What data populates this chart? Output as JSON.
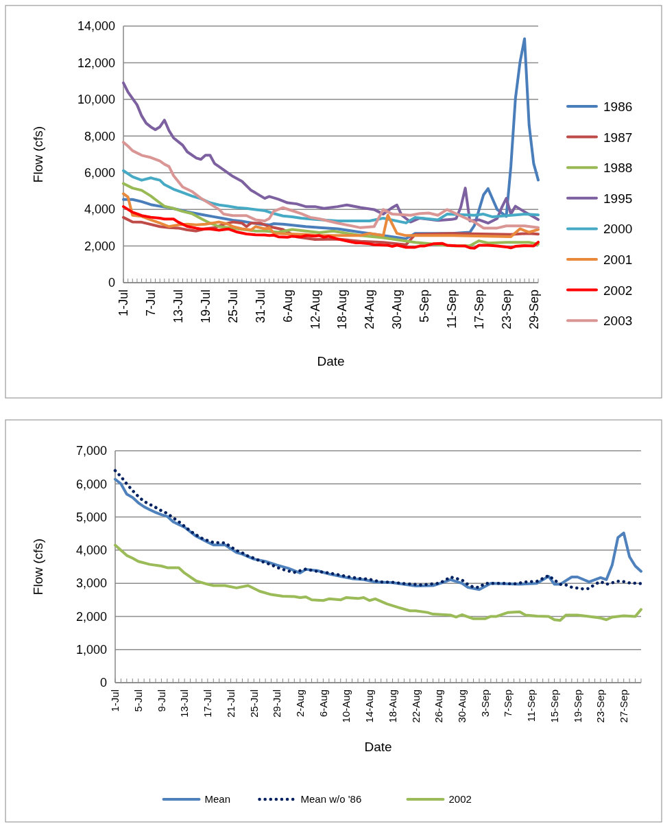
{
  "chart_data": [
    {
      "type": "line",
      "xlabel": "Date",
      "ylabel": "Flow (cfs)",
      "xlim": [
        "--07-01",
        "--09-30"
      ],
      "ylim": [
        0,
        14000
      ],
      "yticks": [
        0,
        {
          "value": 2000,
          "label": "2,000"
        },
        {
          "value": 4000,
          "label": "4,000"
        },
        {
          "value": 6000,
          "label": "6,000"
        },
        {
          "value": 8000,
          "label": "8,000"
        },
        {
          "value": 10000,
          "label": "10,000"
        },
        {
          "value": 12000,
          "label": "12,000"
        },
        {
          "value": 14000,
          "label": "14,000"
        }
      ],
      "xticks": [
        {
          "value": "--07-01",
          "label": "1-Jul"
        },
        {
          "value": "--07-07",
          "label": "7-Jul"
        },
        {
          "value": "--07-13",
          "label": "13-Jul"
        },
        {
          "value": "--07-19",
          "label": "19-Jul"
        },
        {
          "value": "--07-25",
          "label": "25-Jul"
        },
        {
          "value": "--07-31",
          "label": "31-Jul"
        },
        {
          "value": "--08-06",
          "label": "6-Aug"
        },
        {
          "value": "--08-12",
          "label": "12-Aug"
        },
        {
          "value": "--08-18",
          "label": "18-Aug"
        },
        {
          "value": "--08-24",
          "label": "24-Aug"
        },
        {
          "value": "--08-30",
          "label": "30-Aug"
        },
        {
          "value": "--09-05",
          "label": "5-Sep"
        },
        {
          "value": "--09-11",
          "label": "11-Sep"
        },
        {
          "value": "--09-17",
          "label": "17-Sep"
        },
        {
          "value": "--09-23",
          "label": "23-Sep"
        },
        {
          "value": "--09-29",
          "label": "29-Sep"
        }
      ],
      "grid": "y",
      "legend": "right",
      "line_style": "solid",
      "series": [
        {
          "name": "1986",
          "color": "#4a7ebb",
          "x": [
            "--07-01",
            "--07-03",
            "--07-05",
            "--07-07",
            "--07-09",
            "--07-11",
            "--07-13",
            "--07-15",
            "--07-17",
            "--07-19",
            "--07-21",
            "--07-23",
            "--07-25",
            "--07-27",
            "--07-29",
            "--07-31",
            "--08-02",
            "--08-03",
            "--08-05",
            "--08-10",
            "--08-13",
            "--08-17",
            "--08-22",
            "--08-27",
            "--09-01",
            "--09-03",
            "--09-11",
            "--09-15",
            "--09-16",
            "--09-18",
            "--09-19",
            "--09-21",
            "--09-23",
            "--09-24",
            "--09-25",
            "--09-26",
            "--09-27",
            "--09-28",
            "--09-29",
            "--09-30"
          ],
          "values": [
            4540,
            4540,
            4420,
            4260,
            4170,
            4090,
            3990,
            3870,
            3770,
            3680,
            3590,
            3500,
            3410,
            3350,
            3270,
            3190,
            3150,
            3220,
            3190,
            3060,
            3000,
            2940,
            2750,
            2570,
            2400,
            2690,
            2690,
            2750,
            3120,
            4790,
            5130,
            3990,
            3620,
            6340,
            10040,
            12020,
            13310,
            8600,
            6500,
            5600
          ]
        },
        {
          "name": "1987",
          "color": "#be4b48",
          "x": [
            "--07-01",
            "--07-03",
            "--07-05",
            "--07-09",
            "--07-11",
            "--07-13",
            "--07-15",
            "--07-17",
            "--07-19",
            "--07-21",
            "--07-23",
            "--07-25",
            "--07-27",
            "--07-28",
            "--07-29",
            "--07-31",
            "--08-02",
            "--08-05",
            "--08-08",
            "--08-12",
            "--08-17",
            "--08-22",
            "--08-27",
            "--09-01",
            "--09-03",
            "--09-11",
            "--09-24",
            "--09-28",
            "--09-30"
          ],
          "values": [
            3560,
            3310,
            3300,
            3060,
            3000,
            2980,
            2880,
            2820,
            2940,
            3000,
            3190,
            3310,
            3250,
            3060,
            3250,
            3250,
            3060,
            2900,
            2500,
            2360,
            2380,
            2260,
            2200,
            2070,
            2630,
            2690,
            2630,
            2690,
            2650
          ]
        },
        {
          "name": "1988",
          "color": "#98b954",
          "x": [
            "--07-01",
            "--07-03",
            "--07-05",
            "--07-07",
            "--07-08",
            "--07-10",
            "--07-12",
            "--07-14",
            "--07-16",
            "--07-18",
            "--07-20",
            "--07-22",
            "--07-24",
            "--07-26",
            "--07-28",
            "--07-30",
            "--08-01",
            "--08-04",
            "--08-07",
            "--08-10",
            "--08-13",
            "--08-16",
            "--08-22",
            "--08-27",
            "--09-03",
            "--09-11",
            "--09-15",
            "--09-17",
            "--09-19",
            "--09-23",
            "--09-28",
            "--09-30"
          ],
          "values": [
            5410,
            5160,
            5040,
            4730,
            4540,
            4170,
            4050,
            3890,
            3770,
            3500,
            3250,
            3060,
            3000,
            2940,
            2880,
            2820,
            2820,
            2750,
            2900,
            2820,
            2730,
            2820,
            2570,
            2450,
            2200,
            2010,
            2010,
            2280,
            2160,
            2200,
            2200,
            2100
          ]
        },
        {
          "name": "1995",
          "color": "#7d60a0",
          "x": [
            "--07-01",
            "--07-02",
            "--07-04",
            "--07-05",
            "--07-06",
            "--07-07",
            "--07-08",
            "--07-09",
            "--07-10",
            "--07-11",
            "--07-12",
            "--07-14",
            "--07-15",
            "--07-17",
            "--07-18",
            "--07-19",
            "--07-20",
            "--07-21",
            "--07-23",
            "--07-25",
            "--07-27",
            "--07-29",
            "--07-30",
            "--08-01",
            "--08-02",
            "--08-04",
            "--08-06",
            "--08-08",
            "--08-10",
            "--08-12",
            "--08-14",
            "--08-17",
            "--08-19",
            "--08-22",
            "--08-25",
            "--08-27",
            "--08-29",
            "--08-30",
            "--08-31",
            "--09-01",
            "--09-02",
            "--09-04",
            "--09-08",
            "--09-11",
            "--09-12",
            "--09-13",
            "--09-14",
            "--09-15",
            "--09-17",
            "--09-19",
            "--09-21",
            "--09-22",
            "--09-23",
            "--09-24",
            "--09-25",
            "--09-27",
            "--09-30"
          ],
          "values": [
            10900,
            10400,
            9700,
            9100,
            8700,
            8500,
            8350,
            8500,
            8870,
            8300,
            7900,
            7500,
            7140,
            6800,
            6730,
            6950,
            6950,
            6500,
            6150,
            5800,
            5530,
            5040,
            4900,
            4600,
            4700,
            4550,
            4360,
            4300,
            4150,
            4150,
            4050,
            4150,
            4240,
            4100,
            3990,
            3740,
            4100,
            4240,
            3700,
            3500,
            3310,
            3520,
            3400,
            3450,
            3500,
            4110,
            5160,
            3370,
            3430,
            3250,
            3500,
            4100,
            4600,
            3740,
            4170,
            3870,
            3440
          ]
        },
        {
          "name": "2000",
          "color": "#46aac5",
          "x": [
            "--07-01",
            "--07-03",
            "--07-05",
            "--07-07",
            "--07-08",
            "--07-09",
            "--07-10",
            "--07-12",
            "--07-14",
            "--07-16",
            "--07-18",
            "--07-20",
            "--07-22",
            "--07-24",
            "--07-26",
            "--07-28",
            "--07-30",
            "--08-01",
            "--08-03",
            "--08-05",
            "--08-07",
            "--08-09",
            "--08-12",
            "--08-17",
            "--08-24",
            "--08-27",
            "--09-01",
            "--09-03",
            "--09-08",
            "--09-10",
            "--09-16",
            "--09-18",
            "--09-20",
            "--09-27",
            "--09-30"
          ],
          "values": [
            6110,
            5780,
            5590,
            5720,
            5650,
            5590,
            5350,
            5100,
            4920,
            4730,
            4580,
            4360,
            4240,
            4170,
            4090,
            4050,
            3990,
            3930,
            3770,
            3640,
            3590,
            3520,
            3450,
            3370,
            3370,
            3520,
            3260,
            3560,
            3430,
            3740,
            3680,
            3740,
            3590,
            3740,
            3700
          ]
        },
        {
          "name": "2001",
          "color": "#e8893c",
          "x": [
            "--07-01",
            "--07-02",
            "--07-03",
            "--07-05",
            "--07-07",
            "--07-09",
            "--07-11",
            "--07-13",
            "--07-15",
            "--07-17",
            "--07-19",
            "--07-21",
            "--07-22",
            "--07-24",
            "--07-25",
            "--07-27",
            "--07-29",
            "--07-30",
            "--08-01",
            "--08-02",
            "--08-03",
            "--08-10",
            "--08-13",
            "--08-22",
            "--08-24",
            "--08-27",
            "--08-28",
            "--08-30",
            "--09-01",
            "--09-11",
            "--09-24",
            "--09-26",
            "--09-28",
            "--09-30"
          ],
          "values": [
            4850,
            4670,
            3680,
            3620,
            3430,
            3250,
            3060,
            3150,
            3190,
            3150,
            3190,
            3270,
            3310,
            3190,
            3060,
            2940,
            2880,
            3060,
            2940,
            3000,
            2690,
            2630,
            2570,
            2570,
            2690,
            2570,
            3680,
            2690,
            2570,
            2570,
            2510,
            2940,
            2750,
            2900
          ]
        },
        {
          "name": "2002",
          "color": "#ff0000",
          "x": [
            "--07-01",
            "--07-03",
            "--07-04",
            "--07-05",
            "--07-07",
            "--07-09",
            "--07-10",
            "--07-12",
            "--07-13",
            "--07-15",
            "--07-17",
            "--07-18",
            "--07-20",
            "--07-22",
            "--07-24",
            "--07-26",
            "--07-28",
            "--07-30",
            "--08-01",
            "--08-02",
            "--08-03",
            "--08-04",
            "--08-06",
            "--08-07",
            "--08-09",
            "--08-10",
            "--08-12",
            "--08-13",
            "--08-14",
            "--08-15",
            "--08-17",
            "--08-19",
            "--08-21",
            "--08-22",
            "--08-24",
            "--08-25",
            "--08-28",
            "--08-29",
            "--08-30",
            "--09-01",
            "--09-03",
            "--09-04",
            "--09-05",
            "--09-07",
            "--09-09",
            "--09-10",
            "--09-12",
            "--09-14",
            "--09-15",
            "--09-16",
            "--09-17",
            "--09-19",
            "--09-21",
            "--09-23",
            "--09-24",
            "--09-25",
            "--09-27",
            "--09-29",
            "--09-30"
          ],
          "values": [
            4150,
            3840,
            3760,
            3660,
            3570,
            3520,
            3470,
            3470,
            3310,
            3070,
            2970,
            2930,
            2930,
            2860,
            2930,
            2760,
            2660,
            2610,
            2600,
            2570,
            2590,
            2500,
            2480,
            2530,
            2500,
            2570,
            2540,
            2570,
            2480,
            2530,
            2380,
            2270,
            2170,
            2170,
            2120,
            2070,
            2040,
            1980,
            2050,
            1930,
            1930,
            2000,
            2000,
            2120,
            2140,
            2040,
            2010,
            2000,
            1900,
            1880,
            2040,
            2040,
            2000,
            1950,
            1900,
            1980,
            2020,
            2000,
            2210
          ]
        },
        {
          "name": "2003",
          "color": "#d99694",
          "x": [
            "--07-01",
            "--07-02",
            "--07-03",
            "--07-05",
            "--07-07",
            "--07-09",
            "--07-10",
            "--07-11",
            "--07-12",
            "--07-14",
            "--07-16",
            "--07-18",
            "--07-20",
            "--07-22",
            "--07-23",
            "--07-25",
            "--07-28",
            "--07-30",
            "--08-01",
            "--08-02",
            "--08-03",
            "--08-05",
            "--08-07",
            "--08-09",
            "--08-11",
            "--08-13",
            "--08-17",
            "--08-22",
            "--08-25",
            "--08-27",
            "--08-29",
            "--09-02",
            "--09-04",
            "--09-06",
            "--09-08",
            "--09-10",
            "--09-13",
            "--09-16",
            "--09-18",
            "--09-21",
            "--09-23",
            "--09-27",
            "--09-30"
          ],
          "values": [
            7660,
            7450,
            7200,
            6950,
            6830,
            6640,
            6460,
            6340,
            5840,
            5220,
            4980,
            4610,
            4300,
            3990,
            3740,
            3660,
            3660,
            3430,
            3370,
            3500,
            3900,
            4090,
            3930,
            3770,
            3560,
            3480,
            3250,
            3000,
            3060,
            3990,
            3740,
            3680,
            3770,
            3800,
            3680,
            3990,
            3640,
            3310,
            2980,
            2980,
            3100,
            3100,
            3000
          ]
        }
      ]
    },
    {
      "type": "line",
      "xlabel": "Date",
      "ylabel": "Flow (cfs)",
      "xlim": [
        "--07-01",
        "--09-30"
      ],
      "ylim": [
        0,
        7000
      ],
      "yticks": [
        0,
        {
          "value": 1000,
          "label": "1,000"
        },
        {
          "value": 2000,
          "label": "2,000"
        },
        {
          "value": 3000,
          "label": "3,000"
        },
        {
          "value": 4000,
          "label": "4,000"
        },
        {
          "value": 5000,
          "label": "5,000"
        },
        {
          "value": 6000,
          "label": "6,000"
        },
        {
          "value": 7000,
          "label": "7,000"
        }
      ],
      "xticks": [
        {
          "value": "--07-01",
          "label": "1-Jul"
        },
        {
          "value": "--07-05",
          "label": "5-Jul"
        },
        {
          "value": "--07-09",
          "label": "9-Jul"
        },
        {
          "value": "--07-13",
          "label": "13-Jul"
        },
        {
          "value": "--07-17",
          "label": "17-Jul"
        },
        {
          "value": "--07-21",
          "label": "21-Jul"
        },
        {
          "value": "--07-25",
          "label": "25-Jul"
        },
        {
          "value": "--07-29",
          "label": "29-Jul"
        },
        {
          "value": "--08-02",
          "label": "2-Aug"
        },
        {
          "value": "--08-06",
          "label": "6-Aug"
        },
        {
          "value": "--08-10",
          "label": "10-Aug"
        },
        {
          "value": "--08-14",
          "label": "14-Aug"
        },
        {
          "value": "--08-18",
          "label": "18-Aug"
        },
        {
          "value": "--08-22",
          "label": "22-Aug"
        },
        {
          "value": "--08-26",
          "label": "26-Aug"
        },
        {
          "value": "--08-30",
          "label": "30-Aug"
        },
        {
          "value": "--09-03",
          "label": "3-Sep"
        },
        {
          "value": "--09-07",
          "label": "7-Sep"
        },
        {
          "value": "--09-11",
          "label": "11-Sep"
        },
        {
          "value": "--09-15",
          "label": "15-Sep"
        },
        {
          "value": "--09-19",
          "label": "19-Sep"
        },
        {
          "value": "--09-23",
          "label": "23-Sep"
        },
        {
          "value": "--09-27",
          "label": "27-Sep"
        }
      ],
      "grid": "y",
      "legend": "bottom",
      "line_style": "solid",
      "series": [
        {
          "name": "Mean",
          "color": "#4f81bd",
          "x": [
            "--07-01",
            "--07-02",
            "--07-03",
            "--07-04",
            "--07-05",
            "--07-06",
            "--07-07",
            "--07-08",
            "--07-09",
            "--07-10",
            "--07-11",
            "--07-13",
            "--07-15",
            "--07-17",
            "--07-18",
            "--07-20",
            "--07-21",
            "--07-22",
            "--07-23",
            "--07-25",
            "--07-27",
            "--07-29",
            "--07-31",
            "--08-02",
            "--08-03",
            "--08-05",
            "--08-07",
            "--08-09",
            "--08-11",
            "--08-13",
            "--08-15",
            "--08-18",
            "--08-22",
            "--08-25",
            "--08-27",
            "--08-28",
            "--08-30",
            "--08-31",
            "--09-02",
            "--09-04",
            "--09-07",
            "--09-09",
            "--09-12",
            "--09-14",
            "--09-15",
            "--09-16",
            "--09-18",
            "--09-19",
            "--09-21",
            "--09-23",
            "--09-24",
            "--09-25",
            "--09-26",
            "--09-27",
            "--09-28",
            "--09-29",
            "--09-30"
          ],
          "values": [
            6140,
            6000,
            5690,
            5590,
            5430,
            5310,
            5220,
            5140,
            5070,
            5020,
            4860,
            4690,
            4420,
            4240,
            4160,
            4160,
            4040,
            3930,
            3880,
            3730,
            3660,
            3550,
            3450,
            3310,
            3420,
            3380,
            3280,
            3210,
            3140,
            3110,
            3040,
            3020,
            2920,
            2930,
            3040,
            3110,
            3000,
            2880,
            2810,
            3000,
            2980,
            2970,
            3000,
            3210,
            2970,
            2970,
            3190,
            3190,
            3040,
            3170,
            3110,
            3550,
            4380,
            4520,
            3800,
            3520,
            3360
          ]
        },
        {
          "name": "Mean w/o '86",
          "color": "#002060",
          "line_style": "dotted",
          "x": [
            "--07-01",
            "--07-02",
            "--07-03",
            "--07-04",
            "--07-05",
            "--07-06",
            "--07-07",
            "--07-08",
            "--07-09",
            "--07-10",
            "--07-11",
            "--07-12",
            "--07-13",
            "--07-14",
            "--07-15",
            "--07-16",
            "--07-17",
            "--07-18",
            "--07-20",
            "--07-21",
            "--07-22",
            "--07-23",
            "--07-24",
            "--07-25",
            "--07-26",
            "--07-27",
            "--07-28",
            "--07-29",
            "--07-30",
            "--07-31",
            "--08-01",
            "--08-03",
            "--08-04",
            "--08-05",
            "--08-07",
            "--08-08",
            "--08-10",
            "--08-12",
            "--08-14",
            "--08-16",
            "--08-18",
            "--08-20",
            "--08-23",
            "--08-26",
            "--08-27",
            "--08-28",
            "--08-30",
            "--08-31",
            "--09-01",
            "--09-02",
            "--09-03",
            "--09-06",
            "--09-08",
            "--09-10",
            "--09-12",
            "--09-14",
            "--09-15",
            "--09-16",
            "--09-17",
            "--09-18",
            "--09-20",
            "--09-21",
            "--09-22",
            "--09-23",
            "--09-24",
            "--09-26",
            "--09-27",
            "--09-28",
            "--09-30"
          ],
          "values": [
            6400,
            6220,
            6000,
            5800,
            5620,
            5470,
            5380,
            5290,
            5190,
            5110,
            4980,
            4860,
            4720,
            4580,
            4460,
            4360,
            4290,
            4230,
            4220,
            4100,
            3990,
            3920,
            3820,
            3760,
            3680,
            3620,
            3560,
            3480,
            3420,
            3370,
            3330,
            3430,
            3390,
            3360,
            3310,
            3280,
            3210,
            3150,
            3120,
            3040,
            3030,
            2990,
            2950,
            3000,
            3080,
            3190,
            3100,
            2970,
            2880,
            2880,
            3000,
            3000,
            2980,
            3040,
            3060,
            3230,
            3100,
            2970,
            2950,
            2880,
            2830,
            2840,
            2970,
            3050,
            2970,
            3060,
            3050,
            3010,
            2990
          ]
        },
        {
          "name": "2002",
          "color": "#9bbb59",
          "x": [
            "--07-01",
            "--07-03",
            "--07-04",
            "--07-05",
            "--07-07",
            "--07-09",
            "--07-10",
            "--07-12",
            "--07-13",
            "--07-15",
            "--07-17",
            "--07-18",
            "--07-20",
            "--07-22",
            "--07-24",
            "--07-26",
            "--07-28",
            "--07-30",
            "--08-01",
            "--08-02",
            "--08-03",
            "--08-04",
            "--08-06",
            "--08-07",
            "--08-09",
            "--08-10",
            "--08-12",
            "--08-13",
            "--08-14",
            "--08-15",
            "--08-17",
            "--08-19",
            "--08-21",
            "--08-22",
            "--08-24",
            "--08-25",
            "--08-28",
            "--08-29",
            "--08-30",
            "--09-01",
            "--09-03",
            "--09-04",
            "--09-05",
            "--09-07",
            "--09-09",
            "--09-10",
            "--09-12",
            "--09-14",
            "--09-15",
            "--09-16",
            "--09-17",
            "--09-19",
            "--09-21",
            "--09-23",
            "--09-24",
            "--09-25",
            "--09-27",
            "--09-29",
            "--09-30"
          ],
          "values": [
            4150,
            3840,
            3760,
            3660,
            3570,
            3520,
            3470,
            3470,
            3310,
            3070,
            2970,
            2930,
            2930,
            2860,
            2930,
            2760,
            2660,
            2610,
            2600,
            2570,
            2590,
            2500,
            2480,
            2530,
            2500,
            2570,
            2540,
            2570,
            2480,
            2530,
            2380,
            2270,
            2170,
            2170,
            2120,
            2070,
            2040,
            1980,
            2050,
            1930,
            1930,
            2000,
            2000,
            2120,
            2140,
            2040,
            2010,
            2000,
            1900,
            1880,
            2040,
            2040,
            2000,
            1950,
            1900,
            1980,
            2020,
            2000,
            2210
          ]
        }
      ]
    }
  ]
}
